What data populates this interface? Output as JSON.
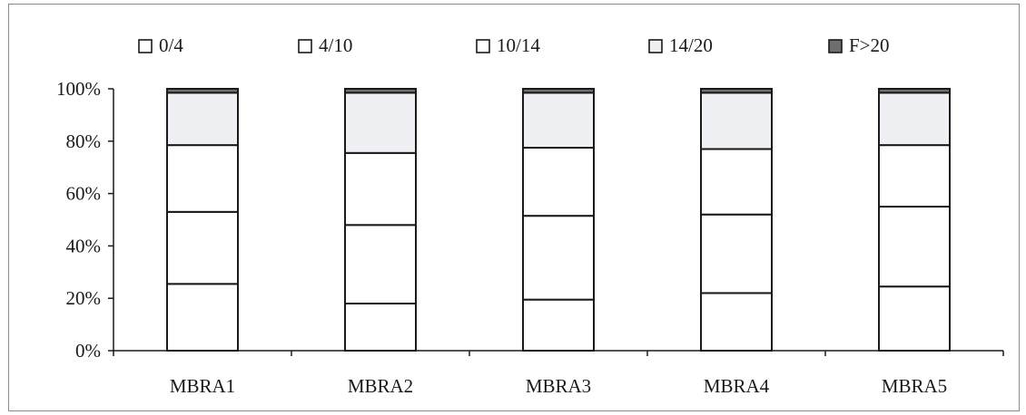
{
  "chart_data": {
    "type": "bar",
    "stacked": true,
    "percent": true,
    "categories": [
      "MBRA1",
      "MBRA2",
      "MBRA3",
      "MBRA4",
      "MBRA5"
    ],
    "series": [
      {
        "name": "0/4",
        "values": [
          25.5,
          18.0,
          19.5,
          22.0,
          24.5
        ],
        "color": "#ffffff"
      },
      {
        "name": "4/10",
        "values": [
          27.5,
          30.0,
          32.0,
          30.0,
          30.5
        ],
        "color": "#ffffff"
      },
      {
        "name": "10/14",
        "values": [
          25.5,
          27.5,
          26.0,
          25.0,
          23.5
        ],
        "color": "#ffffff"
      },
      {
        "name": "14/20",
        "values": [
          20.0,
          23.0,
          21.0,
          21.5,
          20.0
        ],
        "color": "#eef0f3"
      },
      {
        "name": "F>20",
        "values": [
          1.5,
          1.5,
          1.5,
          1.5,
          1.5
        ],
        "color": "#6e6e6e"
      }
    ],
    "yticks": [
      "0%",
      "20%",
      "40%",
      "60%",
      "80%",
      "100%"
    ],
    "ylim": [
      0,
      100
    ],
    "legend": "top",
    "grid": false
  }
}
